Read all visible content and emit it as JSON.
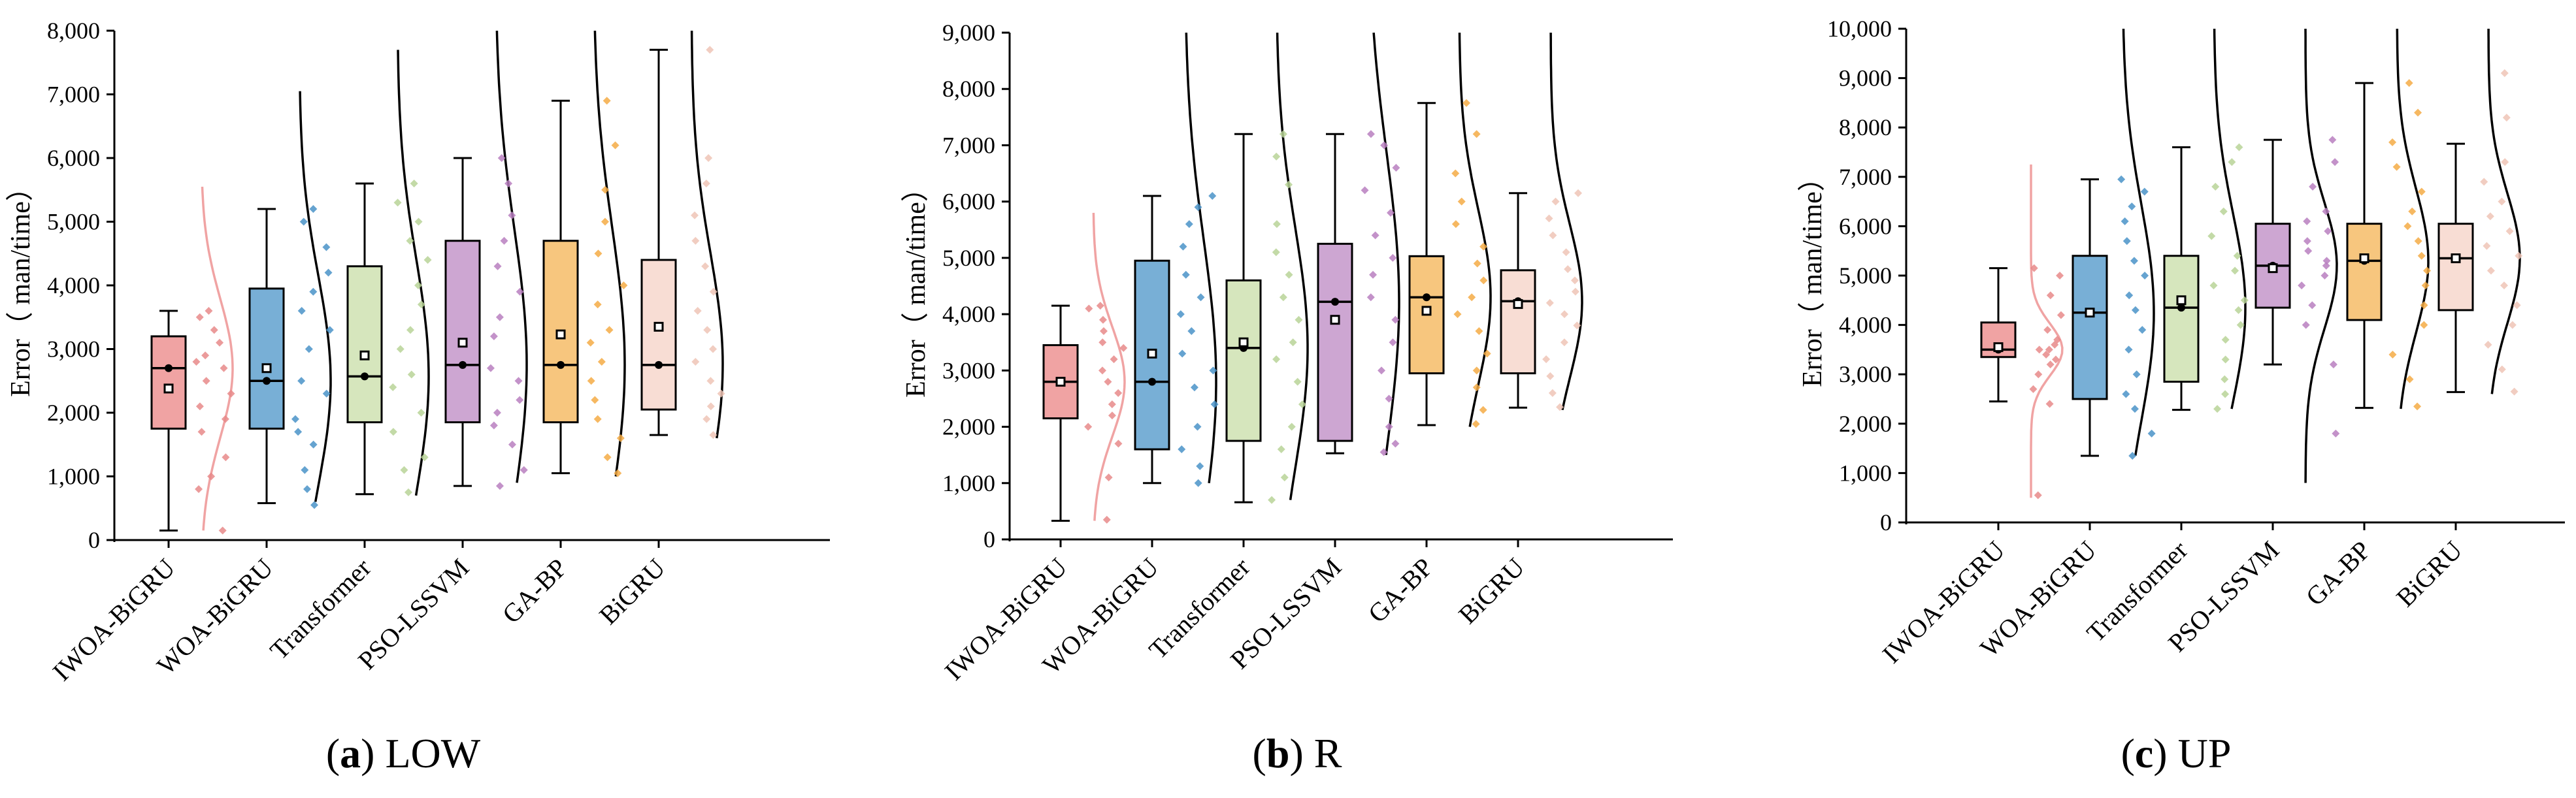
{
  "colors": {
    "IWOA-BiGRU": "#f0a3a3",
    "WOA-BiGRU": "#78afd6",
    "Transformer": "#d6e6bd",
    "PSO-LSSVM": "#cda6d2",
    "GA-BP": "#f7c67e",
    "BiGRU": "#f8ddd4",
    "IWOA-BiGRU_scatter": "#e88a8a",
    "WOA-BiGRU_scatter": "#4a93c8",
    "Transformer_scatter": "#b9d498",
    "PSO-LSSVM_scatter": "#b87fbf",
    "GA-BP_scatter": "#f4ac45",
    "BiGRU_scatter": "#eec4b6",
    "IWOA-BiGRU_density": "#f0a3a3"
  },
  "chart_data": [
    {
      "type": "boxplot",
      "caption_letter": "(a)",
      "caption_text": " LOW",
      "ylabel": "Error（ man/time）",
      "ylim": [
        0,
        8000
      ],
      "yticks": [
        0,
        1000,
        2000,
        3000,
        4000,
        5000,
        6000,
        7000,
        8000
      ],
      "ytick_labels": [
        "0",
        "1,000",
        "2,000",
        "3,000",
        "4,000",
        "5,000",
        "6,000",
        "7,000",
        "8,000"
      ],
      "categories": [
        "IWOA-BiGRU",
        "WOA-BiGRU",
        "Transformer",
        "PSO-LSSVM",
        "GA-BP",
        "BiGRU"
      ],
      "boxes": [
        {
          "min": 150,
          "q1": 1750,
          "median": 2700,
          "q3": 3200,
          "max": 3600,
          "mean": 2380
        },
        {
          "min": 580,
          "q1": 1750,
          "median": 2500,
          "q3": 3950,
          "max": 5200,
          "mean": 2700
        },
        {
          "min": 720,
          "q1": 1850,
          "median": 2570,
          "q3": 4300,
          "max": 5600,
          "mean": 2900
        },
        {
          "min": 850,
          "q1": 1850,
          "median": 2750,
          "q3": 4700,
          "max": 6000,
          "mean": 3100
        },
        {
          "min": 1050,
          "q1": 1850,
          "median": 2750,
          "q3": 4700,
          "max": 6900,
          "mean": 3230
        },
        {
          "min": 1650,
          "q1": 2050,
          "median": 2750,
          "q3": 4400,
          "max": 7700,
          "mean": 3350
        }
      ],
      "density_range": [
        [
          150,
          5550
        ],
        [
          600,
          7050
        ],
        [
          700,
          7700
        ],
        [
          900,
          8000
        ],
        [
          1000,
          8000
        ],
        [
          1600,
          8000
        ]
      ],
      "scatter": [
        [
          150,
          800,
          1000,
          1300,
          1700,
          1900,
          2100,
          2300,
          2500,
          2700,
          2800,
          2900,
          3100,
          3300,
          3500,
          3600
        ],
        [
          550,
          800,
          1100,
          1500,
          1700,
          1900,
          2300,
          2500,
          3000,
          3300,
          3600,
          3900,
          4200,
          4600,
          5000,
          5200
        ],
        [
          750,
          1100,
          1300,
          1700,
          2000,
          2400,
          2600,
          3000,
          3300,
          3700,
          4000,
          4400,
          4700,
          5000,
          5300,
          5600
        ],
        [
          850,
          1100,
          1500,
          1800,
          2000,
          2200,
          2500,
          2700,
          3200,
          3500,
          3900,
          4300,
          4700,
          5100,
          5600,
          6000
        ],
        [
          1050,
          1300,
          1600,
          1900,
          2200,
          2500,
          2800,
          3100,
          3300,
          3700,
          4000,
          4500,
          5000,
          5500,
          6200,
          6900
        ],
        [
          1650,
          1900,
          2100,
          2300,
          2500,
          2800,
          3000,
          3300,
          3600,
          3900,
          4300,
          4700,
          5100,
          5600,
          6000,
          7700
        ]
      ]
    },
    {
      "type": "boxplot",
      "caption_letter": "(b)",
      "caption_text": " R",
      "ylabel": "Error（ man/time）",
      "ylim": [
        0,
        9000
      ],
      "yticks": [
        0,
        1000,
        2000,
        3000,
        4000,
        5000,
        6000,
        7000,
        8000,
        9000
      ],
      "ytick_labels": [
        "0",
        "1,000",
        "2,000",
        "3,000",
        "4,000",
        "5,000",
        "6,000",
        "7,000",
        "8,000",
        "9,000"
      ],
      "categories": [
        "IWOA-BiGRU",
        "WOA-BiGRU",
        "Transformer",
        "PSO-LSSVM",
        "GA-BP",
        "BiGRU"
      ],
      "boxes": [
        {
          "min": 330,
          "q1": 2150,
          "median": 2800,
          "q3": 3450,
          "max": 4150,
          "mean": 2800
        },
        {
          "min": 1000,
          "q1": 1600,
          "median": 2800,
          "q3": 4950,
          "max": 6100,
          "mean": 3300
        },
        {
          "min": 660,
          "q1": 1750,
          "median": 3400,
          "q3": 4600,
          "max": 7200,
          "mean": 3500
        },
        {
          "min": 1530,
          "q1": 1750,
          "median": 4220,
          "q3": 5250,
          "max": 7200,
          "mean": 3900
        },
        {
          "min": 2030,
          "q1": 2950,
          "median": 4300,
          "q3": 5030,
          "max": 7750,
          "mean": 4060
        },
        {
          "min": 2340,
          "q1": 2950,
          "median": 4230,
          "q3": 4780,
          "max": 6150,
          "mean": 4180
        }
      ],
      "density_range": [
        [
          330,
          5800
        ],
        [
          1000,
          9000
        ],
        [
          700,
          9000
        ],
        [
          1500,
          9000
        ],
        [
          2000,
          9000
        ],
        [
          2300,
          9000
        ]
      ],
      "scatter": [
        [
          350,
          1100,
          1700,
          2000,
          2200,
          2400,
          2600,
          2800,
          3000,
          3200,
          3400,
          3500,
          3700,
          3900,
          4100,
          4150
        ],
        [
          1000,
          1300,
          1600,
          2000,
          2400,
          2700,
          3000,
          3300,
          3700,
          4000,
          4300,
          4700,
          5200,
          5600,
          5900,
          6100
        ],
        [
          700,
          1100,
          1600,
          2000,
          2400,
          2800,
          3200,
          3500,
          3900,
          4300,
          4700,
          5100,
          5600,
          6300,
          6800,
          7200
        ],
        [
          1550,
          1700,
          2000,
          2500,
          3000,
          3500,
          3900,
          4300,
          4700,
          5000,
          5400,
          5800,
          6200,
          6600,
          7000,
          7200
        ],
        [
          2050,
          2300,
          2700,
          3000,
          3300,
          3700,
          4000,
          4300,
          4600,
          4900,
          5200,
          5600,
          6000,
          6500,
          7200,
          7750
        ],
        [
          2350,
          2600,
          2900,
          3200,
          3500,
          3800,
          4000,
          4200,
          4400,
          4600,
          4800,
          5100,
          5400,
          5700,
          6000,
          6150
        ]
      ]
    },
    {
      "type": "boxplot",
      "caption_letter": "(c)",
      "caption_text": " UP",
      "ylabel": "Error（ man/time）",
      "ylim": [
        0,
        10000
      ],
      "yticks": [
        0,
        1000,
        2000,
        3000,
        4000,
        5000,
        6000,
        7000,
        8000,
        9000,
        10000
      ],
      "ytick_labels": [
        "0",
        "1,000",
        "2,000",
        "3,000",
        "4,000",
        "5,000",
        "6,000",
        "7,000",
        "8,000",
        "9,000",
        "10,000"
      ],
      "categories": [
        "IWOA-BiGRU",
        "WOA-BiGRU",
        "Transformer",
        "PSO-LSSVM",
        "GA-BP",
        "BiGRU"
      ],
      "boxes": [
        {
          "min": 2450,
          "q1": 3350,
          "median": 3500,
          "q3": 4050,
          "max": 5150,
          "mean": 3550
        },
        {
          "min": 1350,
          "q1": 2500,
          "median": 4250,
          "q3": 5400,
          "max": 6950,
          "mean": 4250
        },
        {
          "min": 2280,
          "q1": 2850,
          "median": 4350,
          "q3": 5400,
          "max": 7600,
          "mean": 4500
        },
        {
          "min": 3200,
          "q1": 4350,
          "median": 5200,
          "q3": 6050,
          "max": 7750,
          "mean": 5150
        },
        {
          "min": 2320,
          "q1": 4100,
          "median": 5300,
          "q3": 6050,
          "max": 8900,
          "mean": 5350
        },
        {
          "min": 2640,
          "q1": 4300,
          "median": 5350,
          "q3": 6050,
          "max": 7670,
          "mean": 5350
        }
      ],
      "density_range": [
        [
          500,
          7250
        ],
        [
          1350,
          10000
        ],
        [
          2300,
          10000
        ],
        [
          800,
          10000
        ],
        [
          2300,
          10000
        ],
        [
          2600,
          10000
        ]
      ],
      "scatter": [
        [
          550,
          2400,
          2700,
          3000,
          3200,
          3300,
          3400,
          3500,
          3500,
          3600,
          3700,
          3900,
          4200,
          4600,
          5000,
          5150
        ],
        [
          1350,
          1800,
          2300,
          2600,
          3000,
          3500,
          3900,
          4300,
          4600,
          5000,
          5300,
          5700,
          6100,
          6400,
          6700,
          6950
        ],
        [
          2300,
          2600,
          2900,
          3300,
          3700,
          4000,
          4300,
          4500,
          4800,
          5100,
          5400,
          5800,
          6300,
          6800,
          7300,
          7600
        ],
        [
          1800,
          3200,
          4000,
          4400,
          4800,
          5000,
          5200,
          5300,
          5500,
          5700,
          5900,
          6100,
          6300,
          6800,
          7300,
          7750
        ],
        [
          2350,
          2900,
          3400,
          4000,
          4400,
          4800,
          5100,
          5400,
          5700,
          6000,
          6300,
          6700,
          7200,
          7700,
          8300,
          8900
        ],
        [
          2650,
          3100,
          3600,
          4000,
          4400,
          4800,
          5100,
          5400,
          5600,
          5900,
          6200,
          6500,
          6900,
          7300,
          8200,
          9100
        ]
      ]
    }
  ]
}
